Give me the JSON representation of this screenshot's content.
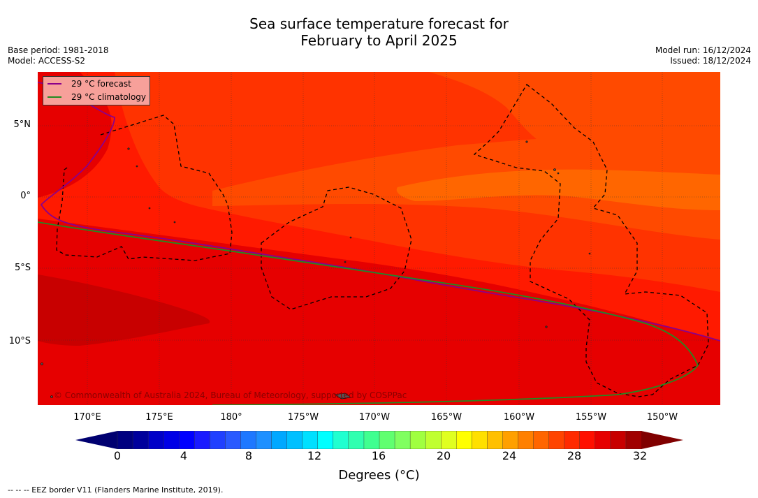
{
  "title": {
    "line1": "Sea surface temperature forecast for",
    "line2": "February to April 2025"
  },
  "meta": {
    "base_period": "Base period: 1981-2018",
    "model": "Model: ACCESS-S2",
    "model_run": "Model run: 16/12/2024",
    "issued": "Issued: 18/12/2024"
  },
  "map": {
    "latitude_labels": [
      "5°N",
      "0°",
      "5°S",
      "10°S"
    ],
    "longitude_labels": [
      "170°E",
      "175°E",
      "180°",
      "175°W",
      "170°W",
      "165°W",
      "160°W",
      "155°W",
      "150°W"
    ],
    "legend": {
      "forecast_label": "29 °C  forecast",
      "climatology_label": "29 °C  climatology",
      "forecast_color": "#8b008b",
      "climatology_color": "#228b22"
    },
    "copyright": "© Commonwealth of Australia 2024, Bureau of Meteorology, supported by COSPPac",
    "colors": {
      "sst_26_27": "#ff6600",
      "sst_27_28": "#ff3300",
      "sst_28_29": "#ff1a00",
      "sst_29_30": "#e60000",
      "sst_30_31": "#c80000"
    }
  },
  "colorbar": {
    "ticks": [
      "0",
      "4",
      "8",
      "12",
      "16",
      "20",
      "24",
      "28",
      "32"
    ],
    "title": "Degrees (°C)",
    "colors": [
      "#000080",
      "#00009c",
      "#0000c8",
      "#0000e6",
      "#0000ff",
      "#1a1aff",
      "#2040ff",
      "#2a5aff",
      "#1e78ff",
      "#1e90ff",
      "#00a8ff",
      "#00c0ff",
      "#00e0ff",
      "#00ffff",
      "#20ffd0",
      "#30ffb0",
      "#40ff90",
      "#60ff70",
      "#80ff60",
      "#a0ff40",
      "#c0ff30",
      "#e0ff20",
      "#ffff00",
      "#ffe000",
      "#ffc000",
      "#ffa000",
      "#ff8000",
      "#ff6600",
      "#ff4400",
      "#ff2a00",
      "#ff1000",
      "#e60000",
      "#c80000",
      "#a00000"
    ]
  },
  "footnote": "--  --  -- EEZ border V11 (Flanders Marine Institute, 2019)."
}
